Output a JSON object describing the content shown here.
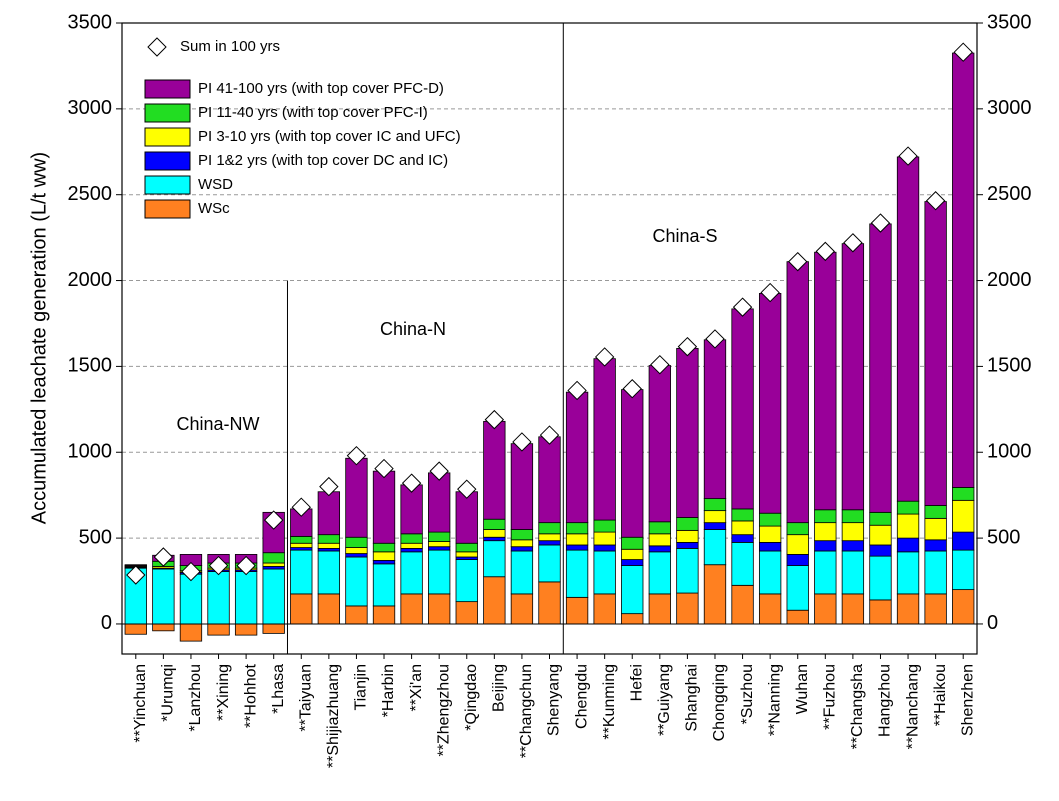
{
  "chart_data": {
    "type": "stacked-bar",
    "y_label": "Accumulated leachate generation (L/t ww)",
    "categories": [
      "**Yinchuan",
      "*Urumqi",
      "*Lanzhou",
      "**Xining",
      "**Hohhot",
      "*Lhasa",
      "**Taiyuan",
      "**Shijiazhuang",
      "Tianjin",
      "*Harbin",
      "**Xi'an",
      "**Zhengzhou",
      "*Qingdao",
      "Beijing",
      "**Changchun",
      "Shenyang",
      "Chengdu",
      "**Kunming",
      "Hefei",
      "**Guiyang",
      "Shanghai",
      "Chongqing",
      "*Suzhou",
      "**Nanning",
      "Wuhan",
      "**Fuzhou",
      "**Changsha",
      "Hangzhou",
      "**Nanchang",
      "**Haikou",
      "Shenzhen"
    ],
    "series": [
      {
        "name": "WSc",
        "color": "#ff8020",
        "values": [
          -60,
          -40,
          -100,
          -65,
          -65,
          -55,
          175,
          175,
          105,
          105,
          175,
          175,
          130,
          275,
          175,
          245,
          155,
          175,
          60,
          175,
          180,
          345,
          225,
          175,
          80,
          175,
          175,
          140,
          175,
          175,
          200
        ]
      },
      {
        "name": "WSD",
        "color": "#00ffff",
        "values": [
          325,
          320,
          290,
          305,
          305,
          320,
          255,
          250,
          285,
          245,
          245,
          255,
          245,
          210,
          250,
          215,
          275,
          250,
          280,
          245,
          260,
          205,
          250,
          250,
          260,
          250,
          250,
          255,
          245,
          250,
          230
        ]
      },
      {
        "name": "PI 1&2 yrs (with top cover DC and IC)",
        "color": "#0000ff",
        "values": [
          5,
          5,
          10,
          10,
          10,
          15,
          15,
          15,
          20,
          20,
          20,
          20,
          15,
          20,
          25,
          25,
          30,
          35,
          35,
          35,
          35,
          40,
          45,
          50,
          65,
          60,
          60,
          65,
          80,
          65,
          105
        ]
      },
      {
        "name": "PI  3-10 yrs (with top cover  IC and UFC)",
        "color": "#ffff00",
        "values": [
          5,
          10,
          10,
          10,
          10,
          20,
          25,
          30,
          35,
          50,
          30,
          30,
          30,
          45,
          40,
          40,
          65,
          75,
          60,
          70,
          70,
          70,
          80,
          95,
          115,
          105,
          105,
          115,
          140,
          125,
          185
        ]
      },
      {
        "name": "PI 11-40 yrs (with top cover PFC-I)",
        "color": "#22dd22",
        "values": [
          5,
          30,
          30,
          30,
          30,
          60,
          40,
          50,
          60,
          50,
          55,
          55,
          50,
          60,
          60,
          65,
          65,
          70,
          70,
          70,
          75,
          70,
          70,
          75,
          70,
          75,
          75,
          75,
          75,
          75,
          75
        ]
      },
      {
        "name": "PI  41-100 yrs (with top cover PFC-D)",
        "color": "#990099",
        "values": [
          5,
          35,
          65,
          50,
          50,
          235,
          160,
          250,
          460,
          420,
          285,
          345,
          300,
          570,
          500,
          500,
          760,
          940,
          860,
          910,
          985,
          925,
          1165,
          1280,
          1520,
          1500,
          1550,
          1680,
          2005,
          1770,
          2530
        ]
      }
    ],
    "markers": {
      "name": "Sum in 100 yrs",
      "values": [
        285,
        390,
        305,
        340,
        340,
        605,
        680,
        800,
        980,
        905,
        820,
        890,
        785,
        1190,
        1060,
        1100,
        1360,
        1555,
        1370,
        1510,
        1615,
        1660,
        1845,
        1930,
        2110,
        2170,
        2220,
        2335,
        2725,
        2465,
        3330
      ]
    },
    "annotations": [
      "China-NW",
      "China-N",
      "China-S"
    ],
    "ylim": [
      -175,
      3500
    ],
    "yticks": [
      0,
      500,
      1000,
      1500,
      2000,
      2500,
      3000,
      3500
    ],
    "grid": true
  }
}
